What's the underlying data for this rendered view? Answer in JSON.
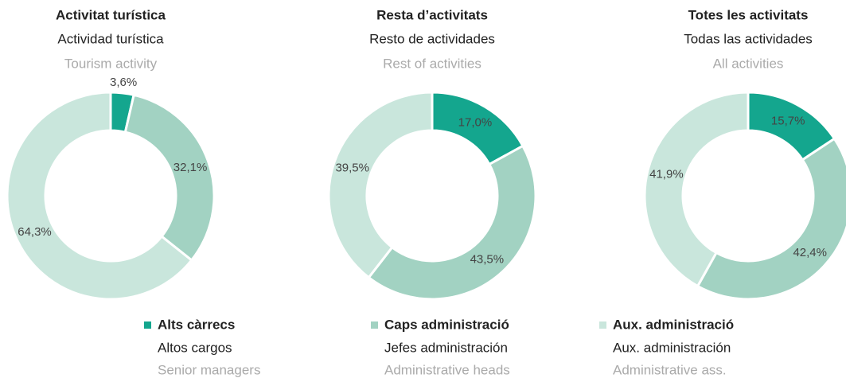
{
  "legend": {
    "items": [
      {
        "ca": "Alts càrrecs",
        "es": "Altos cargos",
        "en": "Senior managers",
        "color": "#14a68e"
      },
      {
        "ca": "Caps administració",
        "es": "Jefes administración",
        "en": "Administrative heads",
        "color": "#a2d2c2"
      },
      {
        "ca": "Aux. administració",
        "es": "Aux. administración",
        "en": "Administrative ass.",
        "color": "#c9e6dc"
      }
    ]
  },
  "chart_data": [
    {
      "type": "donut",
      "title": "Activitat turística",
      "subtitle": "Actividad turística",
      "subtitle_en": "Tourism activity",
      "values": [
        3.6,
        32.1,
        64.3
      ],
      "value_labels": [
        "3,6%",
        "32,1%",
        "64,3%"
      ]
    },
    {
      "type": "donut",
      "title": "Resta d’activitats",
      "subtitle": "Resto de actividades",
      "subtitle_en": "Rest of activities",
      "values": [
        17.0,
        43.5,
        39.5
      ],
      "value_labels": [
        "17,0%",
        "43,5%",
        "39,5%"
      ]
    },
    {
      "type": "donut",
      "title": "Totes les activitats",
      "subtitle": "Todas las actividades",
      "subtitle_en": "All activities",
      "values": [
        15.7,
        42.4,
        41.9
      ],
      "value_labels": [
        "15,7%",
        "42,4%",
        "41,9%"
      ]
    }
  ]
}
